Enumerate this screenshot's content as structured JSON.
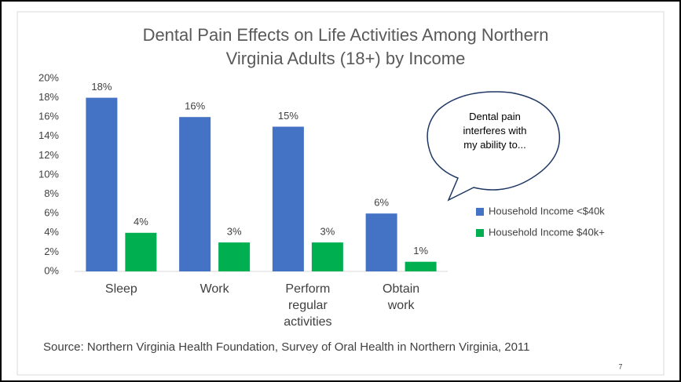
{
  "chart_data": {
    "type": "bar",
    "title": "Dental Pain Effects on Life Activities Among Northern Virginia Adults (18+) by Income",
    "categories": [
      "Sleep",
      "Work",
      "Perform regular activities",
      "Obtain work"
    ],
    "series": [
      {
        "name": "Household Income <$40k",
        "color": "#4472c4",
        "values": [
          18,
          16,
          15,
          6
        ],
        "value_labels": [
          "18%",
          "16%",
          "15%",
          "6%"
        ]
      },
      {
        "name": "Household Income $40k+",
        "color": "#00b050",
        "values": [
          4,
          3,
          3,
          1
        ],
        "value_labels": [
          "4%",
          "3%",
          "3%",
          "1%"
        ]
      }
    ],
    "ylim": [
      0,
      20
    ],
    "yticks": [
      {
        "value": 0,
        "label": "0%"
      },
      {
        "value": 2,
        "label": "2%"
      },
      {
        "value": 4,
        "label": "4%"
      },
      {
        "value": 6,
        "label": "6%"
      },
      {
        "value": 8,
        "label": "8%"
      },
      {
        "value": 10,
        "label": "10%"
      },
      {
        "value": 12,
        "label": "12%"
      },
      {
        "value": 14,
        "label": "14%"
      },
      {
        "value": 16,
        "label": "16%"
      },
      {
        "value": 18,
        "label": "18%"
      },
      {
        "value": 20,
        "label": "20%"
      }
    ],
    "grid": false,
    "legend": "right",
    "annotation": "Dental pain interferes with my ability to...",
    "source": "Source: Northern Virginia Health Foundation, Survey of Oral Health in Northern Virginia, 2011",
    "page_number": "7"
  }
}
